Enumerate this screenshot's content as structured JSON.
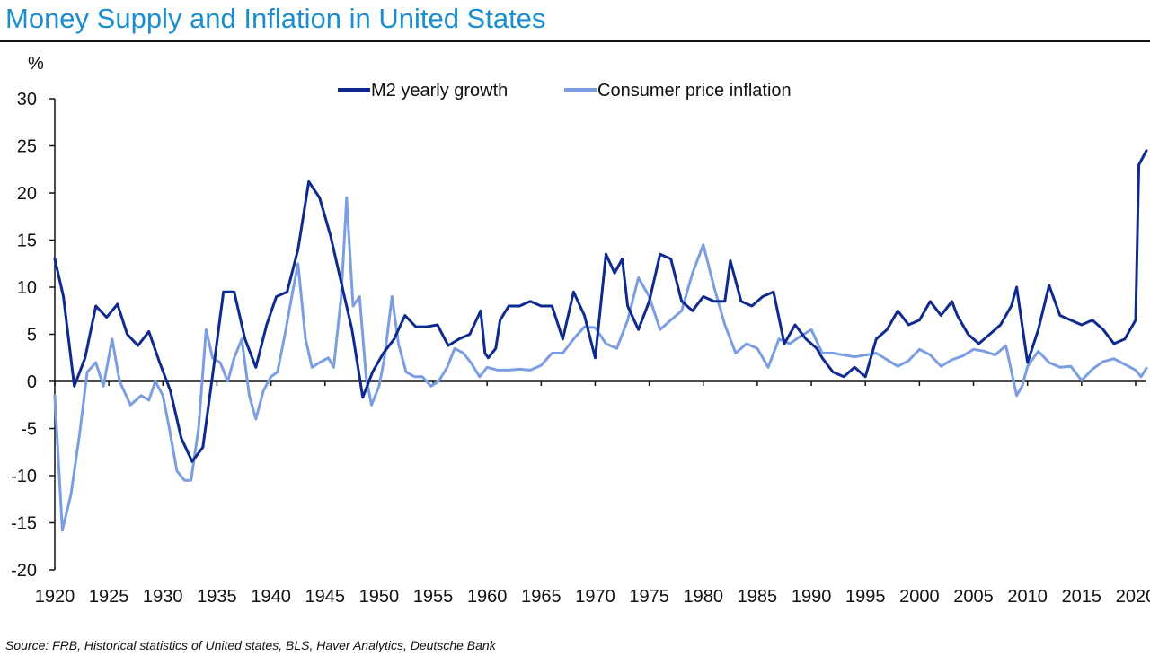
{
  "title": "Money Supply and Inflation in United States",
  "source": "Source: FRB, Historical statistics of United states,  BLS, Haver Analytics, Deutsche Bank",
  "chart_data": {
    "type": "line",
    "title": "Money Supply and Inflation in United States",
    "ylabel": "%",
    "xlabel": "",
    "xlim": [
      1920,
      2021
    ],
    "ylim": [
      -20,
      30
    ],
    "yticks": [
      "30",
      "25",
      "20",
      "15",
      "10",
      "5",
      "0",
      "-5",
      "-10",
      "-15",
      "-20"
    ],
    "xticks": [
      "1920",
      "1925",
      "1930",
      "1935",
      "1940",
      "1945",
      "1950",
      "1955",
      "1960",
      "1965",
      "1970",
      "1975",
      "1980",
      "1985",
      "1990",
      "1995",
      "2000",
      "2005",
      "2010",
      "2015",
      "2020"
    ],
    "legend_position": "top",
    "grid": false,
    "series": [
      {
        "name": "M2 yearly growth",
        "color": "#0f2a8f",
        "points": [
          [
            1920,
            13
          ],
          [
            1920.8,
            9
          ],
          [
            1921.8,
            -0.5
          ],
          [
            1922.8,
            2.5
          ],
          [
            1923.8,
            8
          ],
          [
            1924.8,
            6.8
          ],
          [
            1925.8,
            8.2
          ],
          [
            1926.7,
            5
          ],
          [
            1927.7,
            3.8
          ],
          [
            1928.7,
            5.3
          ],
          [
            1929.7,
            2
          ],
          [
            1930.7,
            -1
          ],
          [
            1931.7,
            -6
          ],
          [
            1932.7,
            -8.5
          ],
          [
            1933.7,
            -7
          ],
          [
            1934.7,
            1.5
          ],
          [
            1935.6,
            9.5
          ],
          [
            1936.6,
            9.5
          ],
          [
            1937.6,
            4.5
          ],
          [
            1938.6,
            1.5
          ],
          [
            1939.6,
            6
          ],
          [
            1940.5,
            9
          ],
          [
            1941.5,
            9.5
          ],
          [
            1942.5,
            14
          ],
          [
            1943.5,
            21.2
          ],
          [
            1944.5,
            19.5
          ],
          [
            1945.5,
            15.5
          ],
          [
            1946.5,
            10.5
          ],
          [
            1947.5,
            5.5
          ],
          [
            1948.5,
            -1.7
          ],
          [
            1949.4,
            1
          ],
          [
            1950.4,
            3
          ],
          [
            1951.4,
            4.5
          ],
          [
            1952.4,
            7
          ],
          [
            1953.4,
            5.8
          ],
          [
            1954.4,
            5.8
          ],
          [
            1955.4,
            6
          ],
          [
            1956.4,
            3.8
          ],
          [
            1957.4,
            4.5
          ],
          [
            1958.4,
            5
          ],
          [
            1959.4,
            7.5
          ],
          [
            1959.8,
            3
          ],
          [
            1960.1,
            2.5
          ],
          [
            1960.8,
            3.5
          ],
          [
            1961.2,
            6.5
          ],
          [
            1962,
            8
          ],
          [
            1963,
            8
          ],
          [
            1964,
            8.5
          ],
          [
            1965,
            8
          ],
          [
            1966,
            8
          ],
          [
            1967,
            4.5
          ],
          [
            1968,
            9.5
          ],
          [
            1969,
            7
          ],
          [
            1970,
            2.5
          ],
          [
            1971,
            13.5
          ],
          [
            1971.8,
            11.5
          ],
          [
            1972.5,
            13
          ],
          [
            1973,
            8
          ],
          [
            1974,
            5.5
          ],
          [
            1975,
            8.5
          ],
          [
            1976,
            13.5
          ],
          [
            1977,
            13
          ],
          [
            1978,
            8.5
          ],
          [
            1979,
            7.5
          ],
          [
            1980,
            9
          ],
          [
            1981,
            8.5
          ],
          [
            1982,
            8.5
          ],
          [
            1982.5,
            12.8
          ],
          [
            1983.5,
            8.5
          ],
          [
            1984.5,
            8
          ],
          [
            1985.5,
            9
          ],
          [
            1986.5,
            9.5
          ],
          [
            1987.5,
            4
          ],
          [
            1988.5,
            6
          ],
          [
            1989.5,
            4.5
          ],
          [
            1990.5,
            3.5
          ],
          [
            1991,
            2.5
          ],
          [
            1992,
            1
          ],
          [
            1993,
            0.5
          ],
          [
            1994,
            1.5
          ],
          [
            1995,
            0.5
          ],
          [
            1996,
            4.5
          ],
          [
            1997,
            5.5
          ],
          [
            1998,
            7.5
          ],
          [
            1999,
            6
          ],
          [
            2000,
            6.5
          ],
          [
            2001,
            8.5
          ],
          [
            2002,
            7
          ],
          [
            2003,
            8.5
          ],
          [
            2003.5,
            7
          ],
          [
            2004.5,
            5
          ],
          [
            2005.5,
            4
          ],
          [
            2006.5,
            5
          ],
          [
            2007.5,
            6
          ],
          [
            2008.5,
            8
          ],
          [
            2009,
            10
          ],
          [
            2010,
            2
          ],
          [
            2011,
            5.5
          ],
          [
            2012,
            10.2
          ],
          [
            2013,
            7
          ],
          [
            2014,
            6.5
          ],
          [
            2015,
            6
          ],
          [
            2016,
            6.5
          ],
          [
            2017,
            5.5
          ],
          [
            2018,
            4
          ],
          [
            2019,
            4.5
          ],
          [
            2020,
            6.5
          ],
          [
            2020.3,
            23
          ],
          [
            2021,
            24.5
          ]
        ]
      },
      {
        "name": "Consumer price inflation",
        "color": "#7b9ee3",
        "points": [
          [
            1920,
            -1.5
          ],
          [
            1920.7,
            -15.8
          ],
          [
            1921.5,
            -12
          ],
          [
            1922.3,
            -5.5
          ],
          [
            1923,
            1
          ],
          [
            1923.8,
            2
          ],
          [
            1924.5,
            -0.5
          ],
          [
            1925.3,
            4.5
          ],
          [
            1926,
            0
          ],
          [
            1927,
            -2.5
          ],
          [
            1928,
            -1.5
          ],
          [
            1928.7,
            -2
          ],
          [
            1929.3,
            0
          ],
          [
            1930,
            -1.5
          ],
          [
            1930.6,
            -5
          ],
          [
            1931.3,
            -9.5
          ],
          [
            1932,
            -10.5
          ],
          [
            1932.6,
            -10.5
          ],
          [
            1933.3,
            -5
          ],
          [
            1934,
            5.5
          ],
          [
            1934.6,
            2.5
          ],
          [
            1935.3,
            2
          ],
          [
            1936,
            0
          ],
          [
            1936.6,
            2.5
          ],
          [
            1937.3,
            4.5
          ],
          [
            1938,
            -1.5
          ],
          [
            1938.6,
            -4
          ],
          [
            1939.3,
            -1
          ],
          [
            1940,
            0.5
          ],
          [
            1940.6,
            1
          ],
          [
            1941.3,
            5
          ],
          [
            1942,
            9.5
          ],
          [
            1942.5,
            12.5
          ],
          [
            1943.2,
            4.5
          ],
          [
            1943.8,
            1.5
          ],
          [
            1944.5,
            2
          ],
          [
            1945.3,
            2.5
          ],
          [
            1945.8,
            1.5
          ],
          [
            1946.5,
            9
          ],
          [
            1947,
            19.5
          ],
          [
            1947.6,
            8
          ],
          [
            1948.2,
            9
          ],
          [
            1948.8,
            0.5
          ],
          [
            1949.3,
            -2.5
          ],
          [
            1950,
            -0.5
          ],
          [
            1950.5,
            2.5
          ],
          [
            1951.2,
            9
          ],
          [
            1951.8,
            4
          ],
          [
            1952.5,
            1
          ],
          [
            1953.3,
            0.5
          ],
          [
            1954,
            0.5
          ],
          [
            1954.8,
            -0.5
          ],
          [
            1955.5,
            0
          ],
          [
            1956.3,
            1.5
          ],
          [
            1957,
            3.5
          ],
          [
            1957.8,
            3
          ],
          [
            1958.5,
            2
          ],
          [
            1959.3,
            0.5
          ],
          [
            1960,
            1.5
          ],
          [
            1961,
            1.2
          ],
          [
            1962,
            1.2
          ],
          [
            1963,
            1.3
          ],
          [
            1964,
            1.2
          ],
          [
            1965,
            1.7
          ],
          [
            1966,
            3
          ],
          [
            1967,
            3
          ],
          [
            1968,
            4.5
          ],
          [
            1969,
            5.8
          ],
          [
            1970,
            5.7
          ],
          [
            1971,
            4
          ],
          [
            1972,
            3.5
          ],
          [
            1973,
            6.5
          ],
          [
            1974,
            11
          ],
          [
            1975,
            9
          ],
          [
            1976,
            5.5
          ],
          [
            1977,
            6.5
          ],
          [
            1978,
            7.5
          ],
          [
            1979,
            11.5
          ],
          [
            1980,
            14.5
          ],
          [
            1981,
            10
          ],
          [
            1982,
            6
          ],
          [
            1983,
            3
          ],
          [
            1984,
            4
          ],
          [
            1985,
            3.5
          ],
          [
            1986,
            1.5
          ],
          [
            1987,
            4.5
          ],
          [
            1988,
            4
          ],
          [
            1989,
            4.8
          ],
          [
            1990,
            5.5
          ],
          [
            1991,
            3
          ],
          [
            1992,
            3
          ],
          [
            1993,
            2.8
          ],
          [
            1994,
            2.6
          ],
          [
            1995,
            2.8
          ],
          [
            1996,
            3
          ],
          [
            1997,
            2.3
          ],
          [
            1998,
            1.6
          ],
          [
            1999,
            2.2
          ],
          [
            2000,
            3.4
          ],
          [
            2001,
            2.8
          ],
          [
            2002,
            1.6
          ],
          [
            2003,
            2.3
          ],
          [
            2004,
            2.7
          ],
          [
            2005,
            3.4
          ],
          [
            2006,
            3.2
          ],
          [
            2007,
            2.8
          ],
          [
            2008,
            3.8
          ],
          [
            2009,
            -1.5
          ],
          [
            2009.5,
            -0.5
          ],
          [
            2010,
            1.6
          ],
          [
            2011,
            3.2
          ],
          [
            2012,
            2
          ],
          [
            2013,
            1.5
          ],
          [
            2014,
            1.6
          ],
          [
            2015,
            0.1
          ],
          [
            2016,
            1.3
          ],
          [
            2017,
            2.1
          ],
          [
            2018,
            2.4
          ],
          [
            2019,
            1.8
          ],
          [
            2020,
            1.2
          ],
          [
            2020.5,
            0.5
          ],
          [
            2021,
            1.4
          ]
        ]
      }
    ]
  }
}
